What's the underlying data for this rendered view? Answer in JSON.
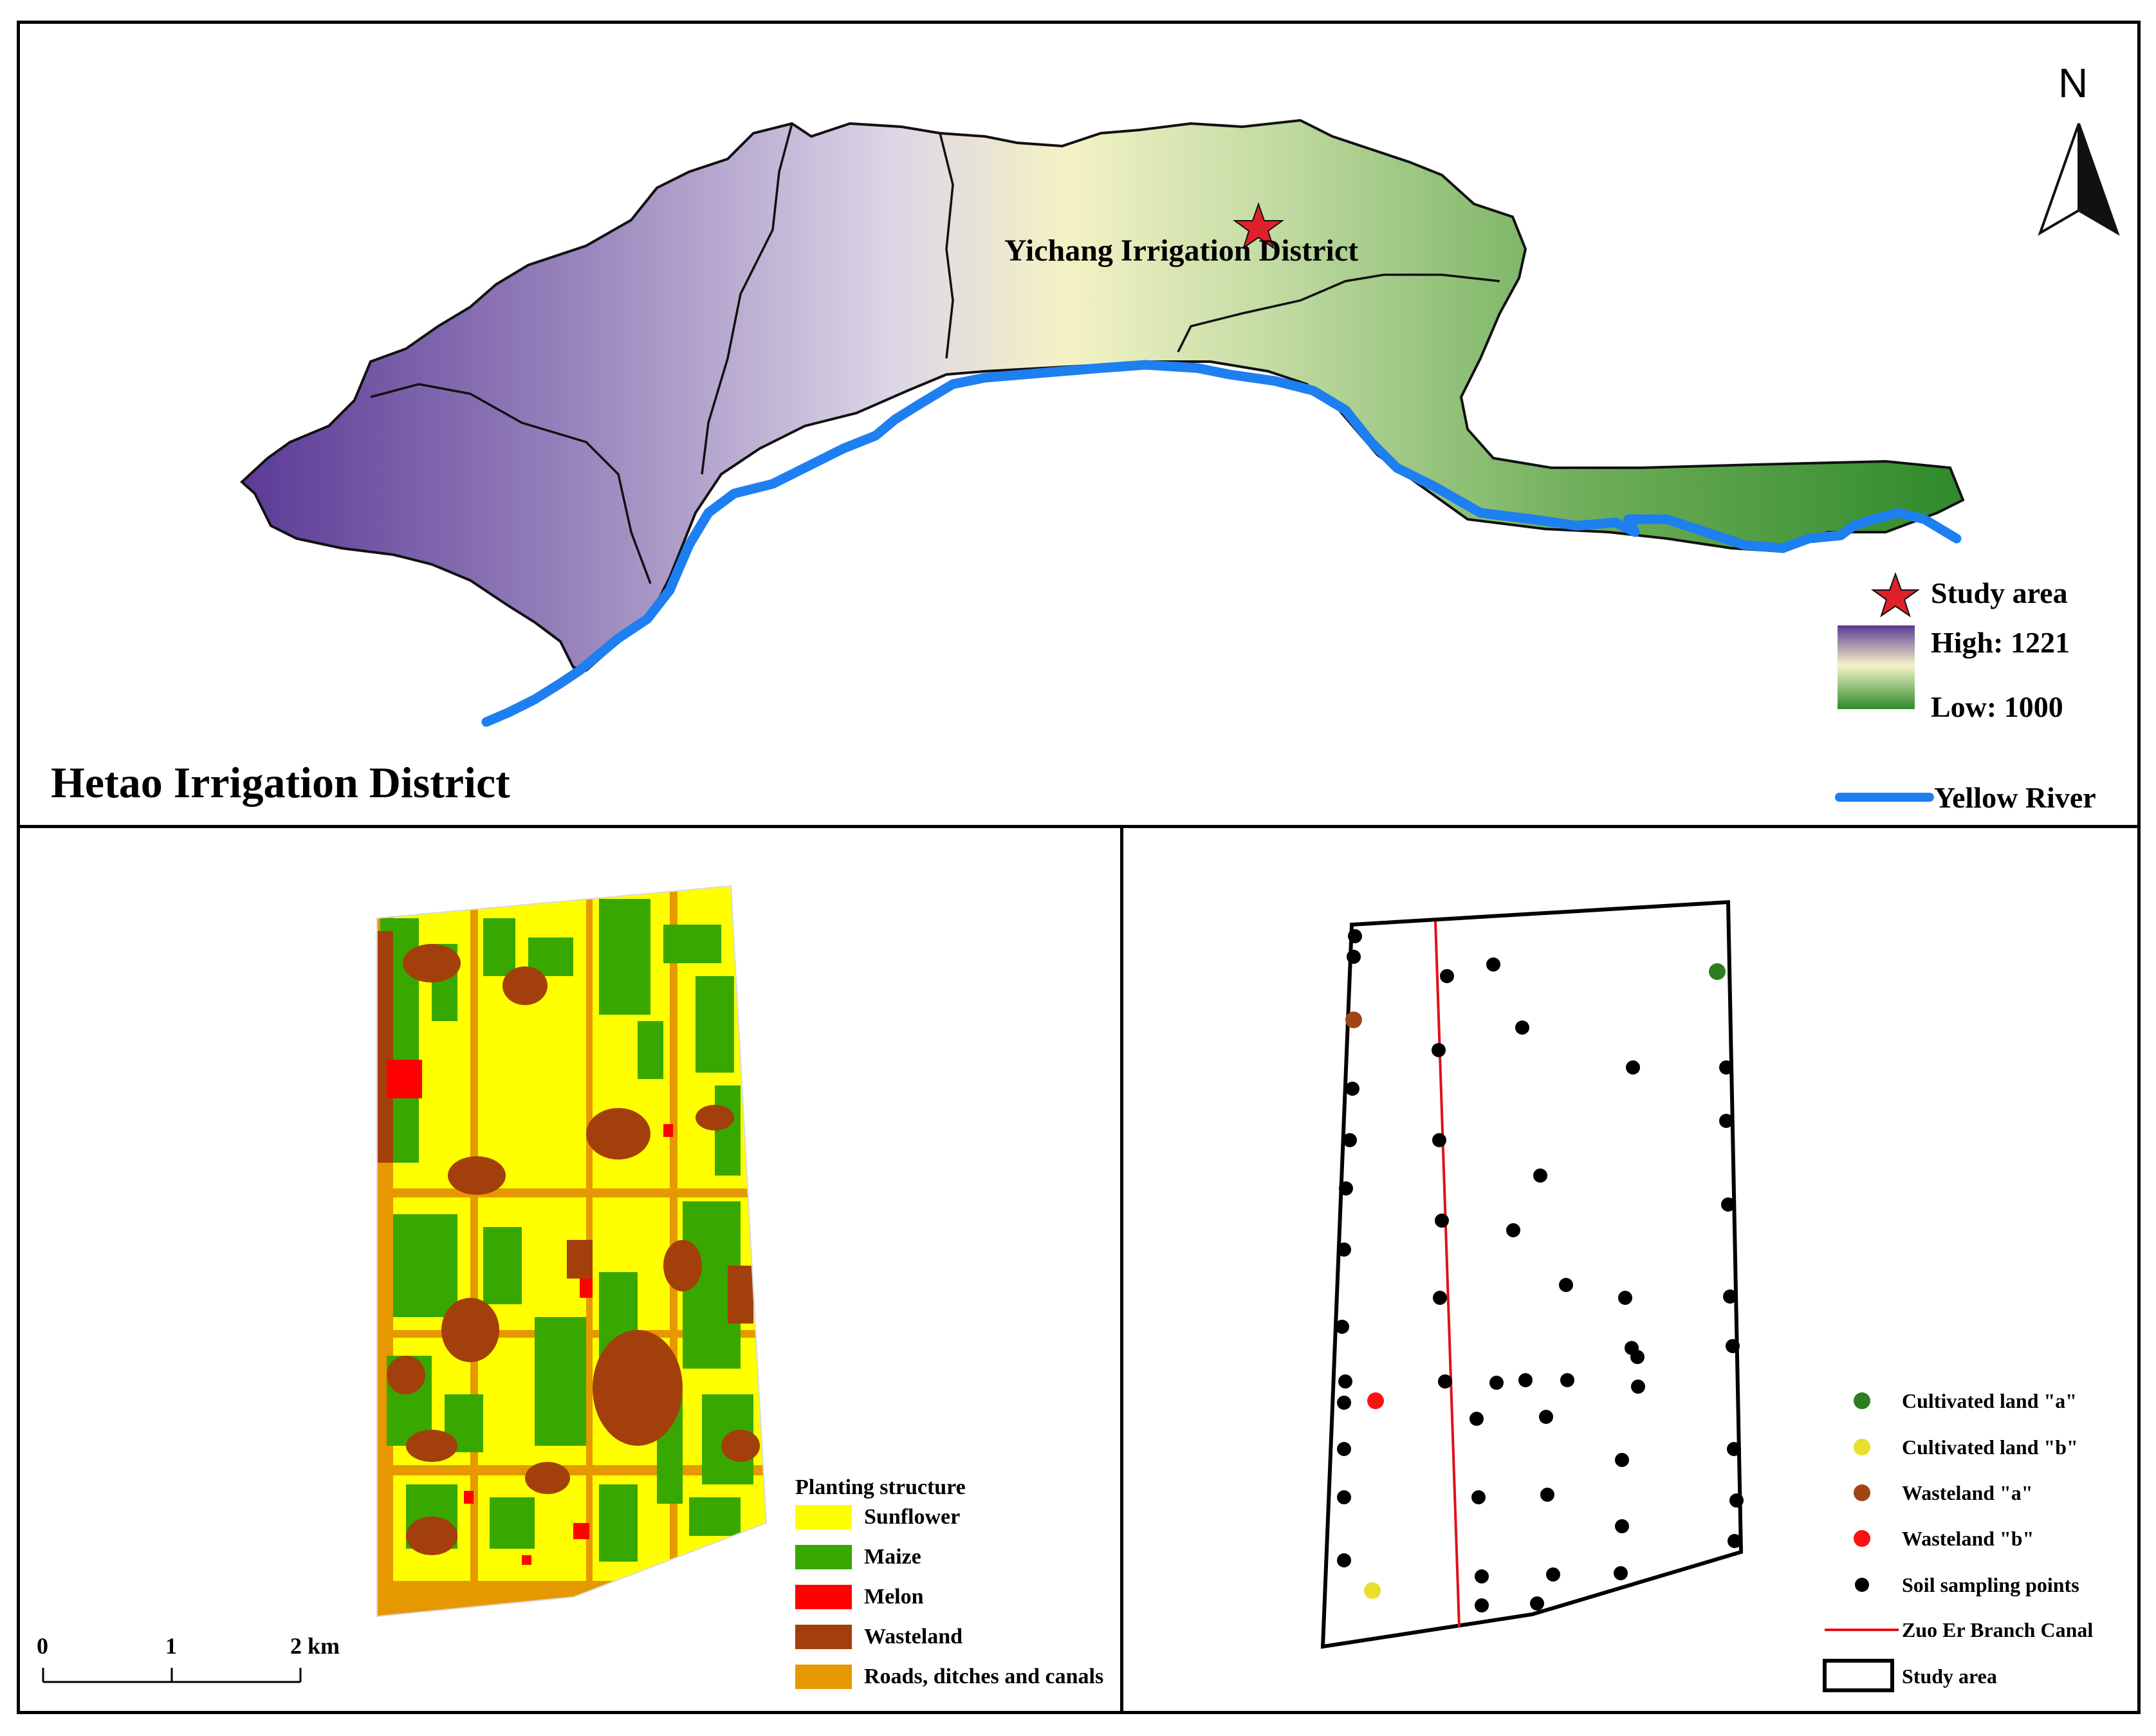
{
  "top_map": {
    "title": "Hetao Irrigation District",
    "study_label": "Yichang Irrigation District",
    "north": "N",
    "legend": {
      "study_area": "Study area",
      "high": "High: 1221",
      "low": "Low: 1000",
      "river": "Yellow River"
    },
    "colors": {
      "high": "#5b3a96",
      "mid": "#f4f2c4",
      "low": "#2f8a2a",
      "river": "#1e7ff0",
      "star": "#e0202a"
    }
  },
  "planting_map": {
    "legend_title": "Planting structure",
    "classes": [
      {
        "label": "Sunflower",
        "color": "#ffff00"
      },
      {
        "label": "Maize",
        "color": "#38a800"
      },
      {
        "label": "Melon",
        "color": "#ff0000"
      },
      {
        "label": "Wasteland",
        "color": "#a33f0b"
      },
      {
        "label": "Roads, ditches and canals",
        "color": "#e69800"
      }
    ],
    "scalebar": {
      "ticks": [
        "0",
        "1",
        "2 km"
      ]
    }
  },
  "sampling_map": {
    "legend": [
      {
        "label": "Cultivated land \"a\"",
        "color": "#2e7d1e",
        "kind": "dot"
      },
      {
        "label": "Cultivated land \"b\"",
        "color": "#e8e02a",
        "kind": "dot"
      },
      {
        "label": "Wasteland \"a\"",
        "color": "#a14516",
        "kind": "dot"
      },
      {
        "label": "Wasteland \"b\"",
        "color": "#ff1010",
        "kind": "dot"
      },
      {
        "label": "Soil sampling points",
        "color": "#000000",
        "kind": "dot"
      },
      {
        "label": "Zuo Er Branch Canal",
        "color": "#e0101a",
        "kind": "line"
      },
      {
        "label": "Study area",
        "color": "#000000",
        "kind": "box"
      }
    ]
  }
}
